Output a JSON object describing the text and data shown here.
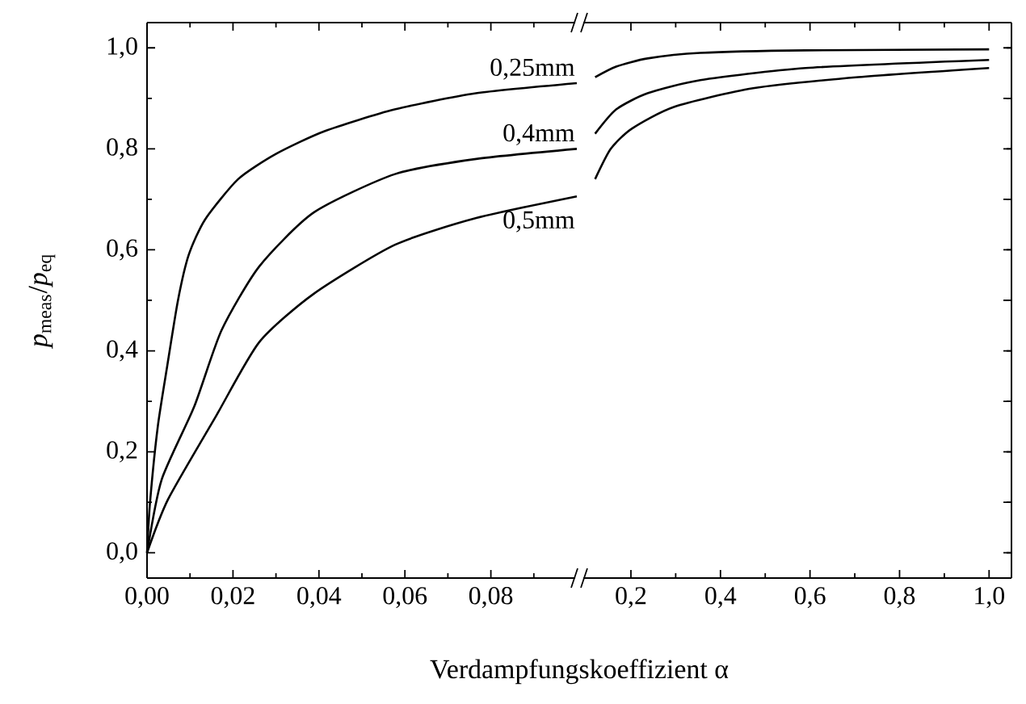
{
  "chart_data": [
    {
      "type": "line",
      "xlabel": "Verdampfungskoeffizient α",
      "ylabel": "*p*$_{meas}$/*p*$_{eq}$",
      "xlim": [
        0,
        0.1
      ],
      "ylim": [
        -0.05,
        1.05
      ],
      "xticks": [
        {
          "value": 0,
          "label": "0,00"
        },
        {
          "value": 0.01,
          "label": null
        },
        {
          "value": 0.02,
          "label": "0,02"
        },
        {
          "value": 0.03,
          "label": null
        },
        {
          "value": 0.04,
          "label": "0,04"
        },
        {
          "value": 0.05,
          "label": null
        },
        {
          "value": 0.06,
          "label": "0,06"
        },
        {
          "value": 0.07,
          "label": null
        },
        {
          "value": 0.08,
          "label": "0,08"
        },
        {
          "value": 0.09,
          "label": null
        }
      ],
      "yticks": [
        {
          "value": 0,
          "label": "0,0"
        },
        {
          "value": 0.1,
          "label": null
        },
        {
          "value": 0.2,
          "label": "0,2"
        },
        {
          "value": 0.3,
          "label": null
        },
        {
          "value": 0.4,
          "label": "0,4"
        },
        {
          "value": 0.5,
          "label": null
        },
        {
          "value": 0.6,
          "label": "0,6"
        },
        {
          "value": 0.7,
          "label": null
        },
        {
          "value": 0.8,
          "label": "0,8"
        },
        {
          "value": 0.9,
          "label": null
        },
        {
          "value": 1.0,
          "label": "1,0"
        }
      ],
      "series": [
        {
          "name": "0,25mm",
          "color": "#000000",
          "x": [
            0,
            0.0007,
            0.0025,
            0.0047,
            0.0072,
            0.0097,
            0.0135,
            0.0212,
            0.03,
            0.0413,
            0.0576,
            0.0765,
            0.1
          ],
          "values": [
            0,
            0.1,
            0.25,
            0.37,
            0.5,
            0.59,
            0.66,
            0.74,
            0.79,
            0.835,
            0.878,
            0.91,
            0.93
          ]
        },
        {
          "name": "0,4mm",
          "color": "#000000",
          "x": [
            0,
            0.0034,
            0.011,
            0.0173,
            0.0261,
            0.0388,
            0.0577,
            0.0766,
            0.1
          ],
          "values": [
            0,
            0.145,
            0.29,
            0.44,
            0.567,
            0.674,
            0.75,
            0.78,
            0.8
          ]
        },
        {
          "name": "0,5mm",
          "color": "#000000",
          "x": [
            0,
            0.0049,
            0.016,
            0.0261,
            0.0388,
            0.0577,
            0.0766,
            0.1
          ],
          "values": [
            0,
            0.106,
            0.27,
            0.417,
            0.513,
            0.61,
            0.663,
            0.706
          ]
        }
      ]
    },
    {
      "type": "line",
      "xlim": [
        0.09,
        1.05
      ],
      "ylim": [
        -0.05,
        1.05
      ],
      "tick_labels": "x",
      "xticks": [
        {
          "value": 0.2,
          "label": "0,2"
        },
        {
          "value": 0.3,
          "label": null
        },
        {
          "value": 0.4,
          "label": "0,4"
        },
        {
          "value": 0.5,
          "label": null
        },
        {
          "value": 0.6,
          "label": "0,6"
        },
        {
          "value": 0.7,
          "label": null
        },
        {
          "value": 0.8,
          "label": "0,8"
        },
        {
          "value": 0.9,
          "label": null
        },
        {
          "value": 1.0,
          "label": "1,0"
        }
      ],
      "yticks": [
        {
          "value": 0,
          "label": null
        },
        {
          "value": 0.1,
          "label": null
        },
        {
          "value": 0.2,
          "label": null
        },
        {
          "value": 0.3,
          "label": null
        },
        {
          "value": 0.4,
          "label": null
        },
        {
          "value": 0.5,
          "label": null
        },
        {
          "value": 0.6,
          "label": null
        },
        {
          "value": 0.7,
          "label": null
        },
        {
          "value": 0.8,
          "label": null
        },
        {
          "value": 0.9,
          "label": null
        },
        {
          "value": 1.0,
          "label": null
        }
      ],
      "series": [
        {
          "color": "#000000",
          "x": [
            0.12,
            0.167,
            0.237,
            0.355,
            0.59,
            1.0
          ],
          "values": [
            0.942,
            0.963,
            0.979,
            0.99,
            0.995,
            0.997
          ]
        },
        {
          "color": "#000000",
          "x": [
            0.12,
            0.167,
            0.237,
            0.355,
            0.59,
            1.0
          ],
          "values": [
            0.83,
            0.878,
            0.91,
            0.936,
            0.96,
            0.976
          ]
        },
        {
          "color": "#000000",
          "x": [
            0.12,
            0.155,
            0.202,
            0.296,
            0.473,
            0.708,
            1.0
          ],
          "values": [
            0.74,
            0.8,
            0.84,
            0.883,
            0.92,
            0.942,
            0.96
          ]
        }
      ]
    }
  ]
}
